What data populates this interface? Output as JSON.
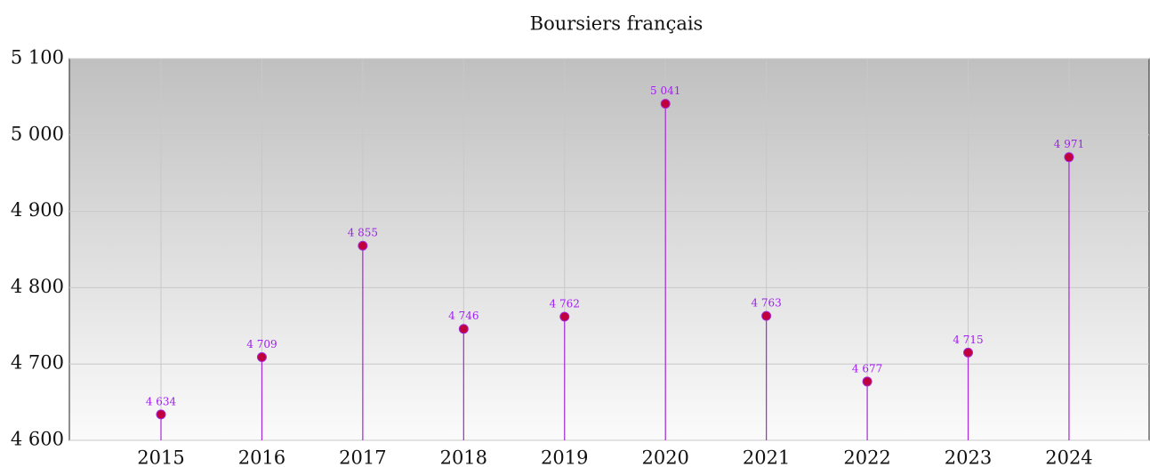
{
  "chart_data": {
    "type": "lollipop",
    "title": "Boursiers français",
    "categories": [
      "2015",
      "2016",
      "2017",
      "2018",
      "2019",
      "2020",
      "2021",
      "2022",
      "2023",
      "2024"
    ],
    "values": [
      4634,
      4709,
      4855,
      4746,
      4762,
      5041,
      4763,
      4677,
      4715,
      4971
    ],
    "value_labels": [
      "4 634",
      "4 709",
      "4 855",
      "4 746",
      "4 762",
      "5 041",
      "4 763",
      "4 677",
      "4 715",
      "4 971"
    ],
    "color": "#c0003c",
    "stem_color": "#a52ad8",
    "label_color": "#a020f0",
    "ylim": [
      4600,
      5100
    ],
    "yticks": [
      {
        "value": 4600,
        "label": "4 600"
      },
      {
        "value": 4700,
        "label": "4 700"
      },
      {
        "value": 4800,
        "label": "4 800"
      },
      {
        "value": 4900,
        "label": "4 900"
      },
      {
        "value": 5000,
        "label": "5 000"
      },
      {
        "value": 5100,
        "label": "5 100"
      }
    ],
    "grid": true
  }
}
